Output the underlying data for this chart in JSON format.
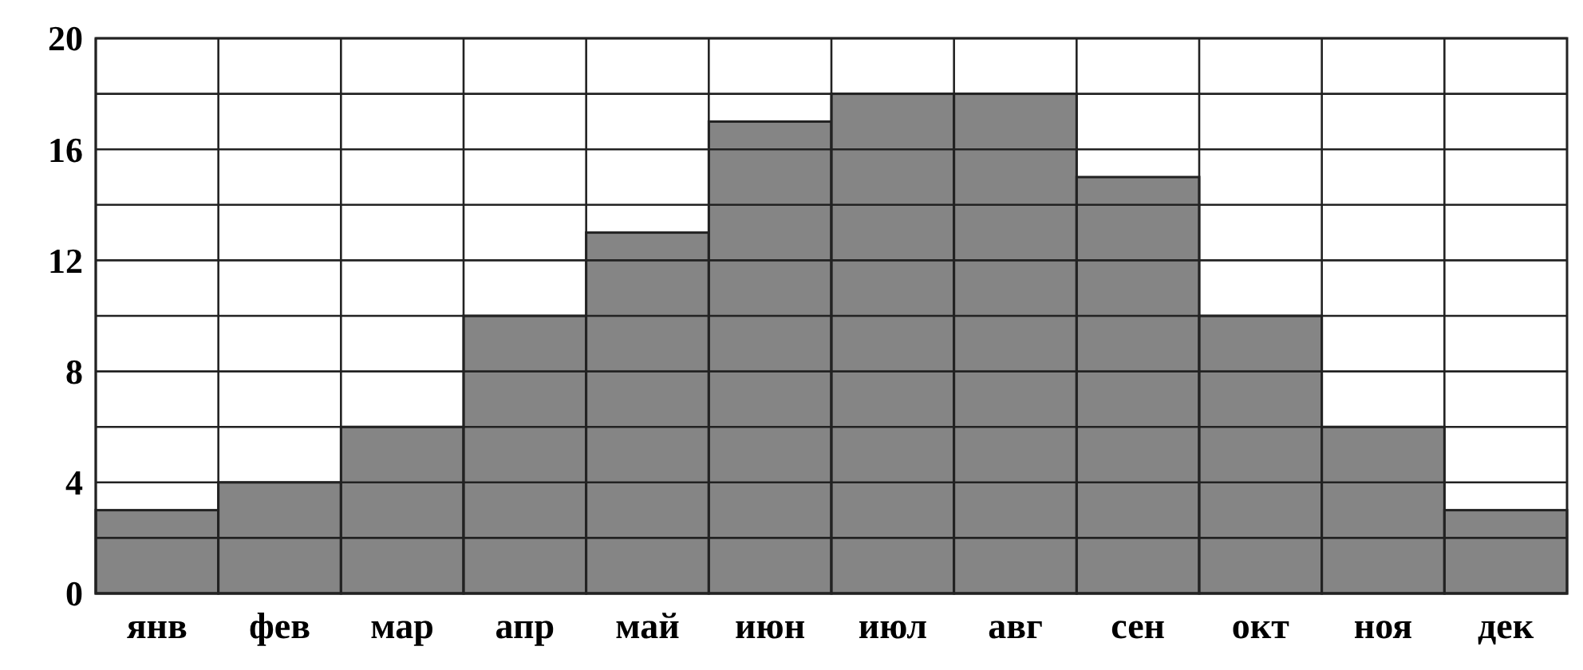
{
  "chart_data": {
    "type": "bar",
    "categories": [
      "янв",
      "фев",
      "мар",
      "апр",
      "май",
      "июн",
      "июл",
      "авг",
      "сен",
      "окт",
      "ноя",
      "дек"
    ],
    "values": [
      3,
      4,
      6,
      10,
      13,
      17,
      18,
      18,
      15,
      10,
      6,
      3
    ],
    "color": "#858585",
    "ylim": [
      0,
      20
    ],
    "yticks": [
      0,
      {
        "value": 2,
        "label": null
      },
      4,
      {
        "value": 6,
        "label": null
      },
      8,
      {
        "value": 10,
        "label": null
      },
      12,
      {
        "value": 14,
        "label": null
      },
      16,
      {
        "value": 18,
        "label": null
      },
      20
    ],
    "grid": true
  }
}
